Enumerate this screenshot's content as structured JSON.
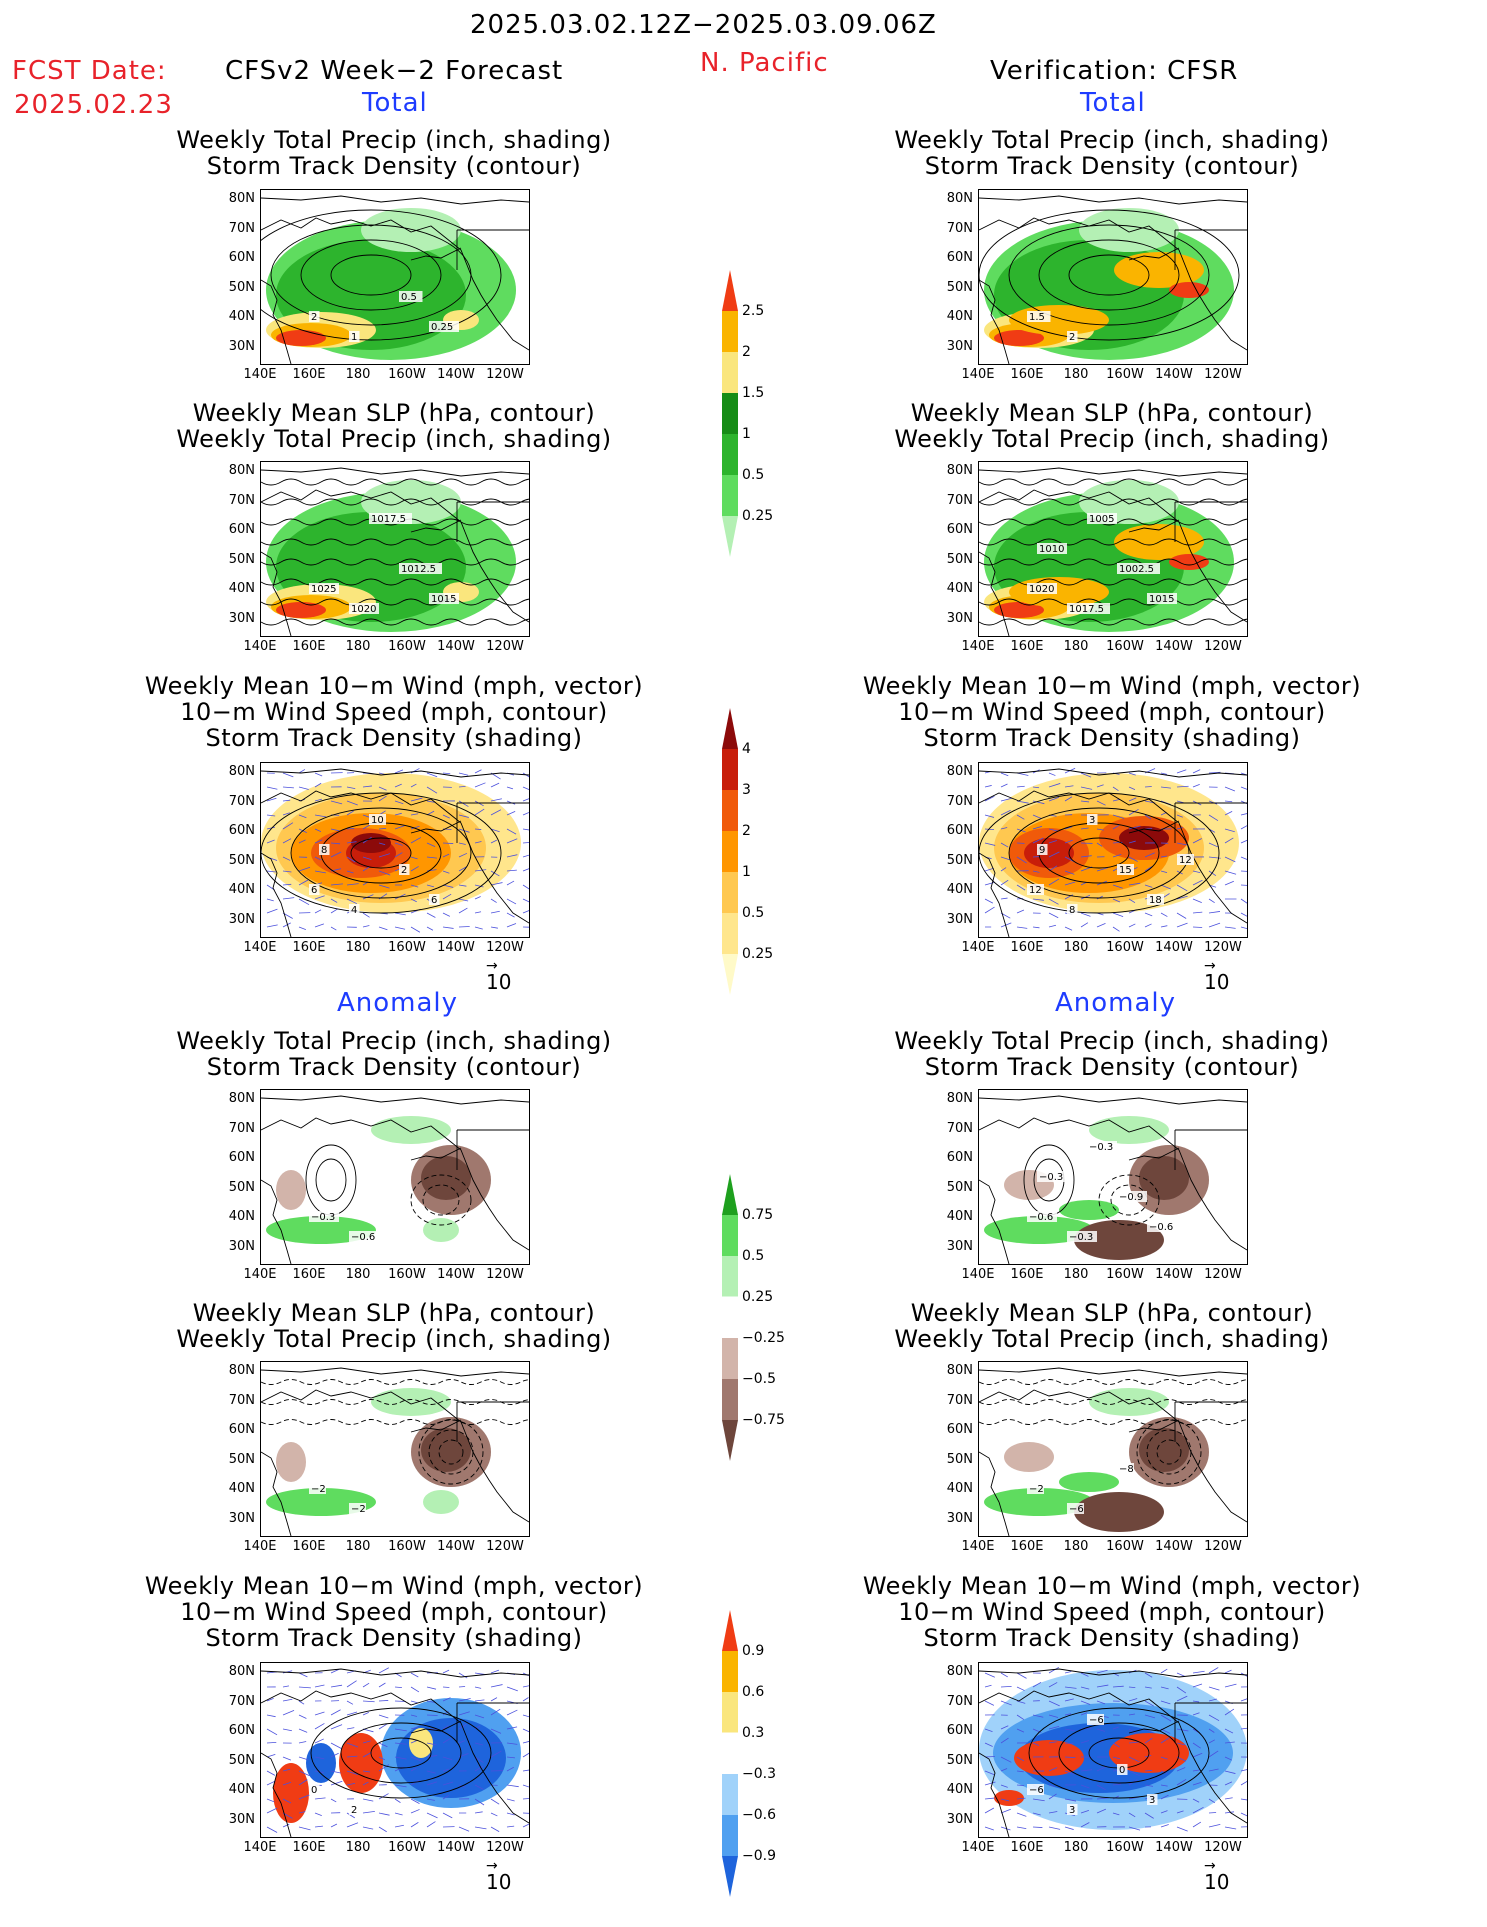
{
  "header": {
    "date_range": "2025.03.02.12Z−2025.03.09.06Z",
    "fcst_label": "FCST Date:",
    "fcst_date": "2025.02.23",
    "left_title": "CFSv2 Week−2 Forecast",
    "region": "N. Pacific",
    "right_title": "Verification: CFSR"
  },
  "sections": {
    "total": "Total",
    "anomaly": "Anomaly"
  },
  "panel_titles": {
    "precip_storm": [
      "Weekly Total Precip (inch, shading)",
      "Storm Track Density (contour)"
    ],
    "slp_precip": [
      "Weekly Mean SLP (hPa, contour)",
      "Weekly Total Precip (inch, shading)"
    ],
    "wind_storm": [
      "Weekly Mean 10−m Wind (mph, vector)",
      "10−m Wind Speed (mph, contour)",
      "Storm Track Density (shading)"
    ]
  },
  "axes": {
    "lat_labels": [
      "80N",
      "70N",
      "60N",
      "50N",
      "40N",
      "30N"
    ],
    "lon_labels": [
      "140E",
      "160E",
      "180",
      "160W",
      "140W",
      "120W"
    ]
  },
  "vector_ref": "10",
  "colorbars": {
    "precip_total": {
      "ticks": [
        "0.25",
        "0.5",
        "1",
        "1.5",
        "2",
        "2.5"
      ],
      "colors": [
        "#b4f0b4",
        "#5fdc5f",
        "#2db42d",
        "#168c16",
        "#fae67d",
        "#fab400",
        "#f03c14"
      ]
    },
    "storm_total": {
      "ticks": [
        "0.25",
        "0.5",
        "1",
        "2",
        "3",
        "4"
      ],
      "colors": [
        "#fffac8",
        "#ffe68c",
        "#ffc850",
        "#ff9600",
        "#f05a0a",
        "#c81e0a",
        "#8c0a0a"
      ]
    },
    "precip_anom": {
      "ticks": [
        "−0.75",
        "−0.5",
        "−0.25",
        "0.25",
        "0.5",
        "0.75"
      ],
      "colors": [
        "#6e463c",
        "#a0786e",
        "#d2b4aa",
        "#ffffff",
        "#b4f0b4",
        "#5fdc5f",
        "#1ea01e"
      ]
    },
    "storm_anom": {
      "ticks": [
        "−0.9",
        "−0.6",
        "−0.3",
        "0.3",
        "0.6",
        "0.9"
      ],
      "colors": [
        "#1e64dc",
        "#50a0f0",
        "#a0d2fa",
        "#ffffff",
        "#fae67d",
        "#fab400",
        "#f03c14"
      ]
    }
  },
  "contour_labels": {
    "p1l": [
      "2",
      "1",
      "0.5",
      "0.25"
    ],
    "p1r": [
      "1.5",
      "2"
    ],
    "p2l": [
      "1025",
      "1020",
      "1012.5",
      "1015",
      "1017.5"
    ],
    "p2r": [
      "1020",
      "1017.5",
      "1002.5",
      "1015",
      "1005",
      "1010"
    ],
    "p3l": [
      "6",
      "4",
      "2",
      "6",
      "10",
      "8"
    ],
    "p3r": [
      "12",
      "8",
      "15",
      "18",
      "3",
      "9",
      "12"
    ],
    "p4l": [
      "−0.3",
      "−0.6"
    ],
    "p4r": [
      "−0.6",
      "−0.3",
      "−0.9",
      "−0.6",
      "−0.3",
      "−0.3"
    ],
    "p5l": [
      "−2",
      "−2"
    ],
    "p5r": [
      "−2",
      "−6",
      "−8"
    ],
    "p6l": [
      "0",
      "2"
    ],
    "p6r": [
      "−6",
      "3",
      "0",
      "3",
      "−6"
    ]
  }
}
